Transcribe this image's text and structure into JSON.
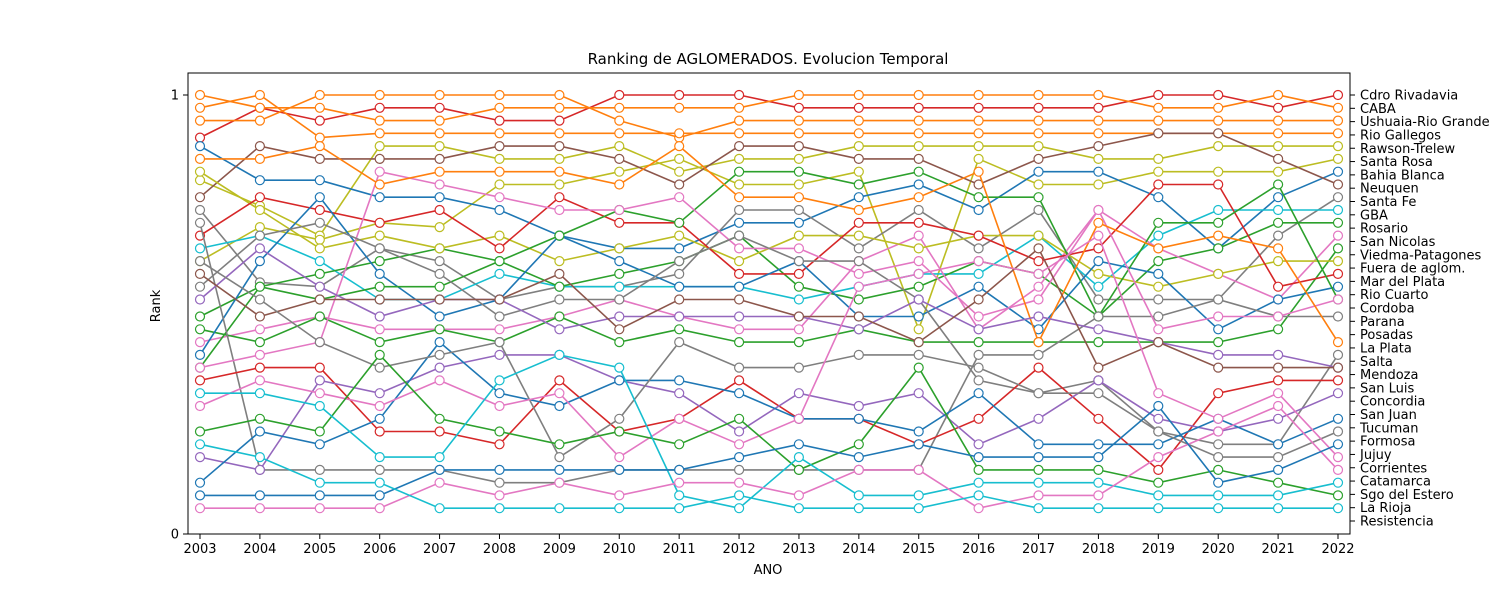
{
  "chart_data": {
    "type": "line",
    "title": "Ranking de AGLOMERADOS. Evolucion Temporal",
    "xlabel": "ANO",
    "ylabel": "Rank",
    "x": [
      2003,
      2004,
      2005,
      2006,
      2007,
      2008,
      2009,
      2010,
      2011,
      2012,
      2013,
      2014,
      2015,
      2016,
      2017,
      2018,
      2019,
      2020,
      2021,
      2022
    ],
    "xlim": [
      2003,
      2022
    ],
    "ylim": [
      0,
      1
    ],
    "yticks": [
      0,
      1
    ],
    "grid": false,
    "legend": "right-axis labels",
    "colors": [
      "#1f77b4",
      "#ff7f0e",
      "#2ca02c",
      "#d62728",
      "#9467bd",
      "#8c564b",
      "#e377c2",
      "#7f7f7f",
      "#bcbd22",
      "#17becf"
    ],
    "series": [
      {
        "name": "Cdro Rivadavia",
        "color": "#d62728",
        "values": [
          0.9,
          0.97,
          0.94,
          0.97,
          0.97,
          0.94,
          0.94,
          1,
          1,
          1,
          0.97,
          0.97,
          0.97,
          0.97,
          0.97,
          0.97,
          1,
          1,
          0.97,
          1
        ]
      },
      {
        "name": "CABA",
        "color": "#ff7f0e",
        "values": [
          1,
          0.97,
          0.97,
          0.94,
          0.94,
          0.97,
          0.97,
          0.97,
          0.97,
          0.97,
          1,
          1,
          1,
          1,
          1,
          1,
          0.97,
          0.97,
          1,
          0.97
        ]
      },
      {
        "name": "Ushuaia-Rio Grande",
        "color": "#ff7f0e",
        "values": [
          0.94,
          0.94,
          1,
          1,
          1,
          1,
          1,
          0.94,
          0.9,
          0.94,
          0.94,
          0.94,
          0.94,
          0.94,
          0.94,
          0.94,
          0.94,
          0.94,
          0.94,
          0.94
        ]
      },
      {
        "name": "Rio Gallegos",
        "color": "#ff7f0e",
        "values": [
          0.97,
          1,
          0.9,
          0.91,
          0.91,
          0.91,
          0.91,
          0.91,
          0.91,
          0.91,
          0.91,
          0.91,
          0.91,
          0.91,
          0.91,
          0.91,
          0.91,
          0.91,
          0.91,
          0.91
        ]
      },
      {
        "name": "Rawson-Trelew",
        "color": "#bcbd22",
        "values": [
          0.8,
          0.74,
          0.67,
          0.88,
          0.88,
          0.85,
          0.85,
          0.88,
          0.82,
          0.85,
          0.85,
          0.88,
          0.88,
          0.88,
          0.88,
          0.85,
          0.85,
          0.88,
          0.88,
          0.88
        ]
      },
      {
        "name": "Santa Rosa",
        "color": "#bcbd22",
        "values": [
          0.61,
          0.69,
          0.66,
          0.7,
          0.69,
          0.79,
          0.79,
          0.82,
          0.85,
          0.79,
          0.79,
          0.82,
          0.45,
          0.85,
          0.79,
          0.79,
          0.82,
          0.82,
          0.82,
          0.85
        ]
      },
      {
        "name": "Bahia Blanca",
        "color": "#1f77b4",
        "values": [
          0.88,
          0.8,
          0.8,
          0.76,
          0.76,
          0.73,
          0.67,
          0.64,
          0.64,
          0.7,
          0.7,
          0.76,
          0.79,
          0.73,
          0.82,
          0.82,
          0.76,
          0.64,
          0.76,
          0.82
        ]
      },
      {
        "name": "Neuquen",
        "color": "#8c564b",
        "values": [
          0.76,
          0.88,
          0.85,
          0.85,
          0.85,
          0.88,
          0.88,
          0.85,
          0.79,
          0.88,
          0.88,
          0.85,
          0.85,
          0.79,
          0.85,
          0.88,
          0.91,
          0.91,
          0.85,
          0.79
        ]
      },
      {
        "name": "Santa Fe",
        "color": "#7f7f7f",
        "values": [
          0.73,
          0.56,
          0.55,
          0.64,
          0.61,
          0.52,
          0.55,
          0.55,
          0.58,
          0.73,
          0.73,
          0.64,
          0.73,
          0.64,
          0.73,
          0.52,
          0.52,
          0.52,
          0.67,
          0.76
        ]
      },
      {
        "name": "GBA",
        "color": "#17becf",
        "values": [
          0.64,
          0.67,
          0.61,
          0.52,
          0.52,
          0.58,
          0.55,
          0.55,
          0.55,
          0.55,
          0.52,
          0.55,
          0.58,
          0.58,
          0.67,
          0.55,
          0.67,
          0.73,
          0.73,
          0.73
        ]
      },
      {
        "name": "Rosario",
        "color": "#2ca02c",
        "values": [
          0.48,
          0.55,
          0.58,
          0.61,
          0.64,
          0.61,
          0.55,
          0.58,
          0.61,
          0.67,
          0.55,
          0.52,
          0.55,
          0.61,
          0.58,
          0.48,
          0.61,
          0.64,
          0.7,
          0.7
        ]
      },
      {
        "name": "San Nicolas",
        "color": "#e377c2",
        "values": [
          0.42,
          0.45,
          0.48,
          0.45,
          0.45,
          0.45,
          0.48,
          0.52,
          0.48,
          0.45,
          0.45,
          0.61,
          0.67,
          0.45,
          0.55,
          0.73,
          0.64,
          0.58,
          0.52,
          0.67
        ]
      },
      {
        "name": "Viedma-Patagones",
        "color": "#2ca02c",
        "values": [
          0.45,
          0.42,
          0.48,
          0.42,
          0.45,
          0.42,
          0.48,
          0.42,
          0.45,
          0.42,
          0.42,
          0.45,
          0.42,
          0.42,
          0.42,
          0.42,
          0.42,
          0.42,
          0.45,
          0.64
        ]
      },
      {
        "name": "Fuera de aglom.",
        "color": "#bcbd22",
        "values": [
          0.82,
          0.73,
          0.64,
          0.67,
          0.64,
          0.67,
          0.61,
          0.64,
          0.67,
          0.61,
          0.67,
          0.67,
          0.64,
          0.67,
          0.67,
          0.58,
          0.55,
          0.58,
          0.61,
          0.61
        ]
      },
      {
        "name": "Mar del Plata",
        "color": "#d62728",
        "values": [
          0.67,
          0.76,
          0.73,
          0.7,
          0.73,
          0.64,
          0.76,
          0.7,
          0.7,
          0.58,
          0.58,
          0.7,
          0.7,
          0.67,
          0.61,
          0.64,
          0.79,
          0.79,
          0.55,
          0.58
        ]
      },
      {
        "name": "Rio Cuarto",
        "color": "#1f77b4",
        "values": [
          0.39,
          0.61,
          0.76,
          0.58,
          0.48,
          0.52,
          0.67,
          0.61,
          0.55,
          0.55,
          0.61,
          0.48,
          0.48,
          0.55,
          0.45,
          0.61,
          0.58,
          0.45,
          0.52,
          0.55
        ]
      },
      {
        "name": "Cordoba",
        "color": "#2ca02c",
        "values": [
          0.36,
          0.55,
          0.52,
          0.55,
          0.55,
          0.61,
          0.67,
          0.73,
          0.7,
          0.82,
          0.82,
          0.79,
          0.82,
          0.76,
          0.76,
          0.48,
          0.7,
          0.7,
          0.79,
          0.52
        ]
      },
      {
        "name": "Parana",
        "color": "#7f7f7f",
        "values": [
          0.7,
          0.12,
          0.12,
          0.12,
          0.12,
          0.09,
          0.09,
          0.12,
          0.12,
          0.12,
          0.12,
          0.12,
          0.12,
          0.39,
          0.39,
          0.48,
          0.48,
          0.52,
          0.48,
          0.48
        ]
      },
      {
        "name": "Posadas",
        "color": "#e377c2",
        "values": [
          0.36,
          0.39,
          0.42,
          0.82,
          0.79,
          0.76,
          0.73,
          0.73,
          0.76,
          0.64,
          0.64,
          0.58,
          0.61,
          0.48,
          0.52,
          0.73,
          0.45,
          0.48,
          0.48,
          0.52
        ]
      },
      {
        "name": "La Plata",
        "color": "#ff7f0e",
        "values": [
          0.85,
          0.85,
          0.88,
          0.79,
          0.82,
          0.82,
          0.82,
          0.79,
          0.88,
          0.76,
          0.76,
          0.73,
          0.76,
          0.82,
          0.42,
          0.7,
          0.64,
          0.67,
          0.64,
          0.42
        ]
      },
      {
        "name": "Salta",
        "color": "#7f7f7f",
        "values": [
          0.55,
          0.67,
          0.7,
          0.64,
          0.58,
          0.48,
          0.52,
          0.52,
          0.61,
          0.67,
          0.61,
          0.61,
          0.52,
          0.33,
          0.3,
          0.33,
          0.21,
          0.18,
          0.18,
          0.39
        ]
      },
      {
        "name": "Mendoza",
        "color": "#9467bd",
        "values": [
          0.52,
          0.64,
          0.55,
          0.48,
          0.52,
          0.52,
          0.45,
          0.48,
          0.48,
          0.48,
          0.48,
          0.45,
          0.52,
          0.45,
          0.48,
          0.45,
          0.42,
          0.39,
          0.39,
          0.36
        ]
      },
      {
        "name": "San Luis",
        "color": "#8c564b",
        "values": [
          0.58,
          0.48,
          0.52,
          0.52,
          0.52,
          0.52,
          0.58,
          0.45,
          0.52,
          0.52,
          0.48,
          0.48,
          0.42,
          0.52,
          0.64,
          0.36,
          0.42,
          0.36,
          0.36,
          0.36
        ]
      },
      {
        "name": "Concordia",
        "color": "#d62728",
        "values": [
          0.33,
          0.36,
          0.36,
          0.21,
          0.21,
          0.18,
          0.33,
          0.21,
          0.24,
          0.33,
          0.24,
          0.24,
          0.18,
          0.24,
          0.36,
          0.24,
          0.12,
          0.3,
          0.33,
          0.33
        ]
      },
      {
        "name": "San Juan",
        "color": "#9467bd",
        "values": [
          0.15,
          0.12,
          0.33,
          0.3,
          0.36,
          0.39,
          0.39,
          0.33,
          0.3,
          0.21,
          0.3,
          0.27,
          0.3,
          0.18,
          0.24,
          0.33,
          0.24,
          0.21,
          0.24,
          0.3
        ]
      },
      {
        "name": "Tucuman",
        "color": "#1f77b4",
        "values": [
          0.09,
          0.21,
          0.18,
          0.24,
          0.42,
          0.3,
          0.27,
          0.33,
          0.33,
          0.3,
          0.24,
          0.24,
          0.21,
          0.3,
          0.18,
          0.18,
          0.18,
          0.24,
          0.18,
          0.24
        ]
      },
      {
        "name": "Formosa",
        "color": "#7f7f7f",
        "values": [
          0.61,
          0.52,
          0.42,
          0.36,
          0.39,
          0.42,
          0.15,
          0.24,
          0.42,
          0.36,
          0.36,
          0.39,
          0.39,
          0.36,
          0.3,
          0.3,
          0.21,
          0.15,
          0.15,
          0.21
        ]
      },
      {
        "name": "Jujuy",
        "color": "#e377c2",
        "values": [
          0.27,
          0.33,
          0.3,
          0.27,
          0.33,
          0.27,
          0.3,
          0.15,
          0.24,
          0.18,
          0.24,
          0.55,
          0.58,
          0.61,
          0.58,
          0.67,
          0.3,
          0.24,
          0.3,
          0.15
        ]
      },
      {
        "name": "Corrientes",
        "color": "#2ca02c",
        "values": [
          0.21,
          0.24,
          0.21,
          0.39,
          0.24,
          0.21,
          0.18,
          0.21,
          0.18,
          0.24,
          0.12,
          0.18,
          0.36,
          0.12,
          0.12,
          0.12,
          0.09,
          0.12,
          0.09,
          0.06
        ]
      },
      {
        "name": "Catamarca",
        "color": "#17becf",
        "values": [
          0.3,
          0.3,
          0.27,
          0.15,
          0.15,
          0.33,
          0.39,
          0.36,
          0.06,
          0.03,
          0.15,
          0.06,
          0.06,
          0.09,
          0.09,
          0.09,
          0.06,
          0.06,
          0.06,
          0.09
        ]
      },
      {
        "name": "Sgo del Estero",
        "color": "#e377c2",
        "values": [
          0.03,
          0.03,
          0.03,
          0.03,
          0.09,
          0.06,
          0.09,
          0.06,
          0.09,
          0.09,
          0.06,
          0.12,
          0.12,
          0.03,
          0.06,
          0.06,
          0.15,
          0.21,
          0.27,
          0.12
        ]
      },
      {
        "name": "La Rioja",
        "color": "#1f77b4",
        "values": [
          0.06,
          0.06,
          0.06,
          0.06,
          0.12,
          0.12,
          0.12,
          0.12,
          0.12,
          0.15,
          0.18,
          0.15,
          0.18,
          0.15,
          0.15,
          0.15,
          0.27,
          0.09,
          0.12,
          0.18
        ]
      },
      {
        "name": "Resistencia",
        "color": "#17becf",
        "values": [
          0.18,
          0.15,
          0.09,
          0.09,
          0.03,
          0.03,
          0.03,
          0.03,
          0.03,
          0.06,
          0.03,
          0.03,
          0.03,
          0.06,
          0.03,
          0.03,
          0.03,
          0.03,
          0.03,
          0.03
        ]
      }
    ]
  }
}
